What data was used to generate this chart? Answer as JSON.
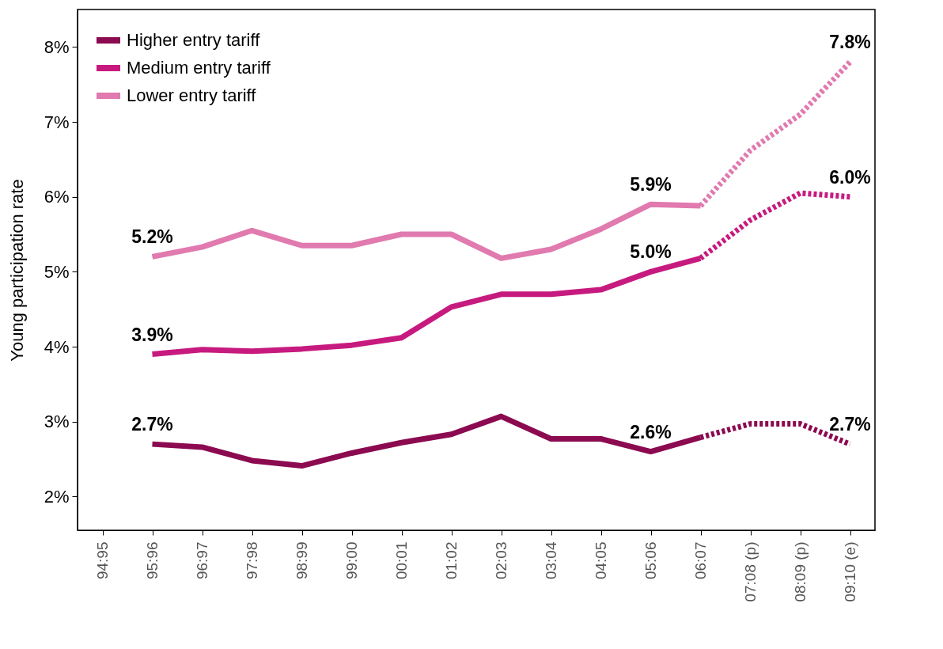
{
  "chart_data": {
    "type": "line",
    "ylabel": "Young participation rate",
    "categories": [
      "94:95",
      "95:96",
      "96:97",
      "97:98",
      "98:99",
      "99:00",
      "00:01",
      "01:02",
      "02:03",
      "03:04",
      "04:05",
      "05:06",
      "06:07",
      "07:08 (p)",
      "08:09 (p)",
      "09:10 (e)"
    ],
    "series": [
      {
        "name": "Higher entry tariff",
        "color": "#8b0a50",
        "line_style": "solid",
        "values": [
          null,
          2.7,
          2.66,
          2.48,
          2.41,
          2.58,
          2.72,
          2.83,
          3.07,
          2.77,
          2.77,
          2.6,
          2.79,
          null,
          null,
          null
        ],
        "value_labels": [
          null,
          "2.7%",
          null,
          null,
          null,
          null,
          null,
          null,
          null,
          null,
          null,
          "2.6%",
          null,
          null,
          null,
          null
        ]
      },
      {
        "name": "Medium entry tariff",
        "color": "#c71a7f",
        "line_style": "solid",
        "values": [
          null,
          3.9,
          3.96,
          3.94,
          3.97,
          4.02,
          4.12,
          4.53,
          4.7,
          4.7,
          4.76,
          5.0,
          5.18,
          null,
          null,
          null
        ],
        "value_labels": [
          null,
          "3.9%",
          null,
          null,
          null,
          null,
          null,
          null,
          null,
          null,
          null,
          "5.0%",
          null,
          null,
          null,
          null
        ]
      },
      {
        "name": "Lower entry tariff",
        "color": "#e07aaf",
        "line_style": "solid",
        "values": [
          null,
          5.2,
          5.33,
          5.55,
          5.35,
          5.35,
          5.5,
          5.5,
          5.18,
          5.3,
          5.57,
          5.9,
          5.88,
          null,
          null,
          null
        ],
        "value_labels": [
          null,
          "5.2%",
          null,
          null,
          null,
          null,
          null,
          null,
          null,
          null,
          null,
          "5.9%",
          null,
          null,
          null,
          null
        ]
      },
      {
        "color": "#8b0a50",
        "line_style": "dotted",
        "values": [
          null,
          null,
          null,
          null,
          null,
          null,
          null,
          null,
          null,
          null,
          null,
          null,
          2.79,
          2.97,
          2.97,
          2.7
        ],
        "value_labels": [
          null,
          null,
          null,
          null,
          null,
          null,
          null,
          null,
          null,
          null,
          null,
          null,
          null,
          null,
          null,
          "2.7%"
        ]
      },
      {
        "color": "#c71a7f",
        "line_style": "dotted",
        "values": [
          null,
          null,
          null,
          null,
          null,
          null,
          null,
          null,
          null,
          null,
          null,
          null,
          5.18,
          5.69,
          6.05,
          6.0
        ],
        "value_labels": [
          null,
          null,
          null,
          null,
          null,
          null,
          null,
          null,
          null,
          null,
          null,
          null,
          null,
          null,
          null,
          "6.0%"
        ]
      },
      {
        "color": "#e07aaf",
        "line_style": "dotted",
        "values": [
          null,
          null,
          null,
          null,
          null,
          null,
          null,
          null,
          null,
          null,
          null,
          null,
          5.88,
          6.62,
          7.1,
          7.8
        ],
        "value_labels": [
          null,
          null,
          null,
          null,
          null,
          null,
          null,
          null,
          null,
          null,
          null,
          null,
          null,
          null,
          null,
          "7.8%"
        ]
      }
    ],
    "ylim": [
      1.55,
      8.5
    ],
    "yticks": [
      {
        "value": 2,
        "label": "2%"
      },
      {
        "value": 3,
        "label": "3%"
      },
      {
        "value": 4,
        "label": "4%"
      },
      {
        "value": 5,
        "label": "5%"
      },
      {
        "value": 6,
        "label": "6%"
      },
      {
        "value": 7,
        "label": "7%"
      },
      {
        "value": 8,
        "label": "8%"
      }
    ],
    "legend": "top left",
    "grid": false,
    "marker": "none"
  }
}
